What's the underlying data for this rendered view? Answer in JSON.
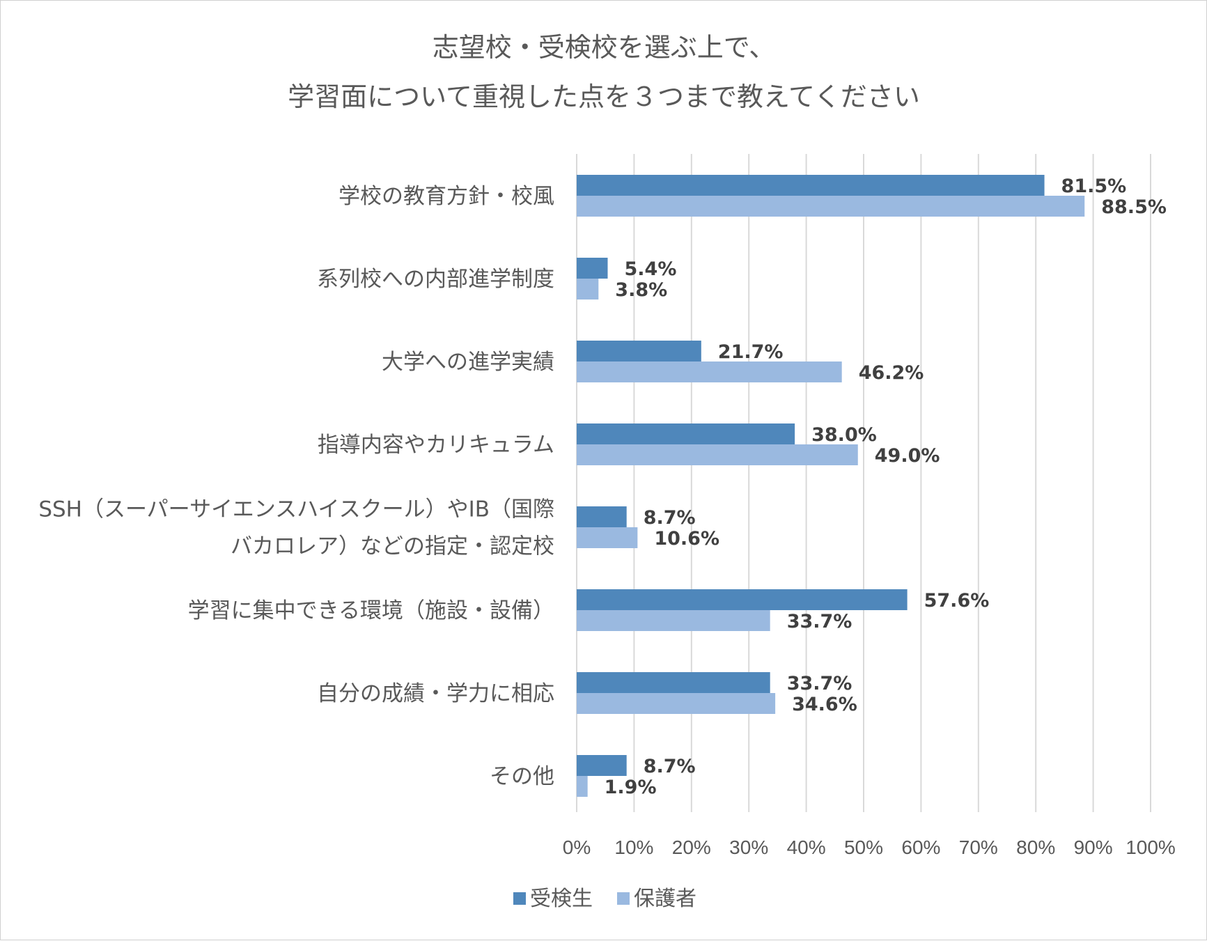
{
  "chart_data": {
    "type": "bar",
    "orientation": "horizontal",
    "title_lines": [
      "志望校・受検校を選ぶ上で、",
      "学習面について重視した点を３つまで教えてください"
    ],
    "categories": [
      [
        "学校の教育方針・校風"
      ],
      [
        "系列校への内部進学制度"
      ],
      [
        "大学への進学実績"
      ],
      [
        "指導内容やカリキュラム"
      ],
      [
        "SSH（スーパーサイエンスハイスクール）やIB（国際",
        "バカロレア）などの指定・認定校"
      ],
      [
        "学習に集中できる環境（施設・設備）"
      ],
      [
        "自分の成績・学力に相応"
      ],
      [
        "その他"
      ]
    ],
    "series": [
      {
        "name": "受検生",
        "color": "#4f87bb",
        "values": [
          81.5,
          5.4,
          21.7,
          38.0,
          8.7,
          57.6,
          33.7,
          8.7
        ],
        "labels": [
          "81.5%",
          "5.4%",
          "21.7%",
          "38.0%",
          "8.7%",
          "57.6%",
          "33.7%",
          "8.7%"
        ]
      },
      {
        "name": "保護者",
        "color": "#9ab9e0",
        "values": [
          88.5,
          3.8,
          46.2,
          49.0,
          10.6,
          33.7,
          34.6,
          1.9
        ],
        "labels": [
          "88.5%",
          "3.8%",
          "46.2%",
          "49.0%",
          "10.6%",
          "33.7%",
          "34.6%",
          "1.9%"
        ]
      }
    ],
    "xlim": [
      0,
      100
    ],
    "xticks": [
      0,
      10,
      20,
      30,
      40,
      50,
      60,
      70,
      80,
      90,
      100
    ],
    "xtick_labels": [
      "0%",
      "10%",
      "20%",
      "30%",
      "40%",
      "50%",
      "60%",
      "70%",
      "80%",
      "90%",
      "100%"
    ],
    "grid": true,
    "legend_position": "bottom"
  }
}
